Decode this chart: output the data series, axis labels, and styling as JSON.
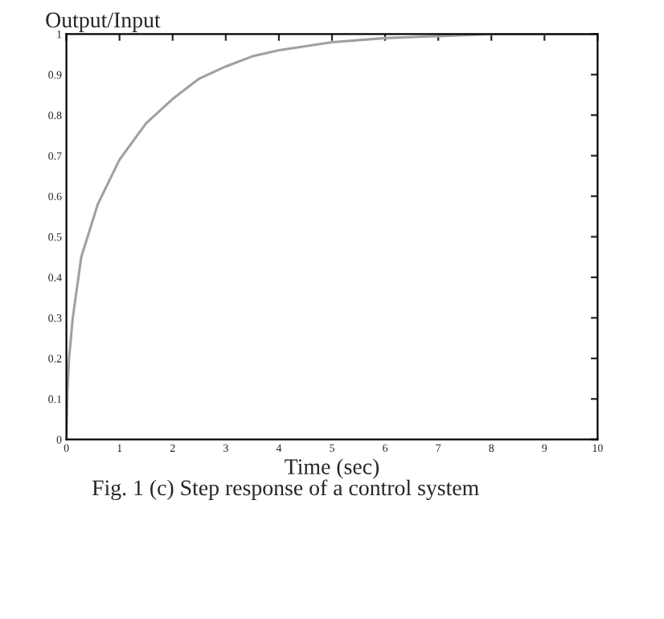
{
  "chart_data": {
    "type": "line",
    "title": "Output/Input",
    "xlabel": "Time (sec)",
    "annotations": [
      "Fig. 1 (c) Step response of a control system"
    ],
    "x": [
      0,
      0.02,
      0.05,
      0.12,
      0.28,
      0.59,
      1.0,
      1.5,
      2.0,
      2.5,
      3.0,
      3.5,
      4.0,
      5.0,
      6.0,
      7.0,
      8.0,
      9.0,
      10.0
    ],
    "series": [
      {
        "color": "#a0a0a0",
        "values": [
          0,
          0.12,
          0.2,
          0.3,
          0.45,
          0.58,
          0.69,
          0.78,
          0.84,
          0.89,
          0.92,
          0.945,
          0.96,
          0.98,
          0.99,
          0.995,
          1.0,
          1.0,
          1.0
        ]
      }
    ],
    "xlim": [
      0,
      10
    ],
    "ylim": [
      0,
      1
    ],
    "xticks": [
      0,
      1,
      2,
      3,
      4,
      5,
      6,
      7,
      8,
      9,
      10
    ],
    "yticks": [
      0,
      0.1,
      0.2,
      0.3,
      0.4,
      0.5,
      0.6,
      0.7,
      0.8,
      0.9,
      1
    ],
    "grid": false,
    "legend": false,
    "marker": "none",
    "line_style": "solid"
  }
}
